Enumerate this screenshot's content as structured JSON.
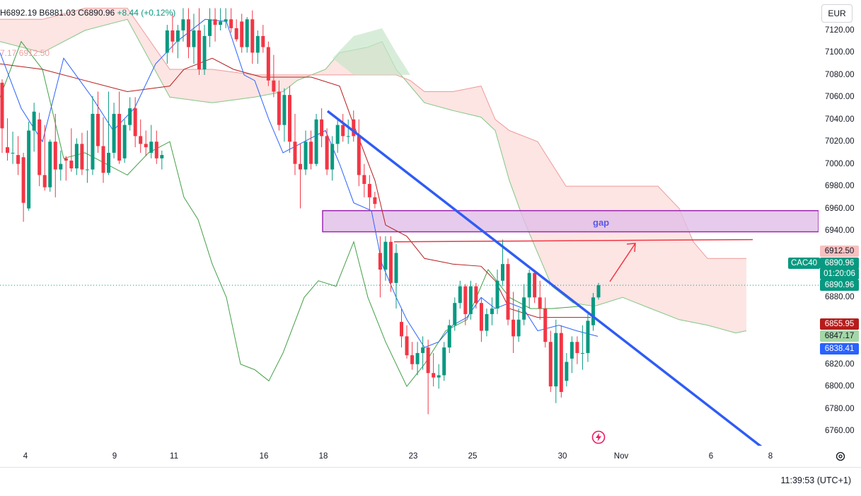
{
  "header": {
    "ohlc_text_h": "H6892.19",
    "ohlc_text_b": "B6881.03",
    "ohlc_text_c": "C6890.96",
    "change_text": "+8.44 (+0.12%)",
    "indicator_text": "7.17 6912.50"
  },
  "currency": "EUR",
  "clock": "11:39:53 (UTC+1)",
  "symbol": "CAC40",
  "annotation": {
    "gap_label": "gap"
  },
  "price_tags": {
    "last": "6890.96",
    "countdown": "01:20:06",
    "last_b": "6890.96",
    "t1": "6912.50",
    "t2": "6855.95",
    "t3": "6847.17",
    "t4": "6838.41"
  },
  "colors": {
    "up": "#089981",
    "down": "#f23645",
    "tenkan": "#2962ff",
    "kijun": "#b71c1c",
    "chikou": "#43a047",
    "cloud_bear": "#f8c5c0",
    "cloud_bull": "#c8e6c9",
    "trendline": "#2f5cf5",
    "gap_box": "#e1bee7"
  },
  "chart_data": {
    "type": "candlestick",
    "y_ticks": [
      "7120.00",
      "7100.00",
      "7080.00",
      "7060.00",
      "7040.00",
      "7020.00",
      "7000.00",
      "6980.00",
      "6960.00",
      "6940.00",
      "6880.00",
      "6820.00",
      "6800.00",
      "6780.00",
      "6760.00"
    ],
    "x_ticks": [
      "4",
      "9",
      "11",
      "16",
      "18",
      "23",
      "25",
      "30",
      "Nov",
      "6",
      "8"
    ],
    "ylim": [
      6750,
      7140
    ],
    "last_price": 6890.96,
    "candles": [
      [
        7073,
        7076,
        7010,
        7032
      ],
      [
        7015,
        7041,
        7003,
        7010
      ],
      [
        7010,
        7029,
        7000,
        7010
      ],
      [
        7008,
        7025,
        6990,
        7000
      ],
      [
        7006,
        7010,
        6948,
        6965
      ],
      [
        6960,
        7038,
        6958,
        7030
      ],
      [
        7030,
        7055,
        7011,
        7047
      ],
      [
        7040,
        7046,
        6980,
        6990
      ],
      [
        6990,
        7035,
        6976,
        6979
      ],
      [
        6979,
        7022,
        6975,
        7020
      ],
      [
        7020,
        7045,
        6970,
        6995
      ],
      [
        6995,
        7012,
        6985,
        7000
      ],
      [
        7005,
        7007,
        6985,
        7003
      ],
      [
        7003,
        7032,
        6993,
        6996
      ],
      [
        6996,
        7023,
        6990,
        7018
      ],
      [
        7018,
        7028,
        6990,
        6995
      ],
      [
        6995,
        7030,
        6983,
        6995
      ],
      [
        6995,
        7061,
        6990,
        7045
      ],
      [
        7045,
        7065,
        7010,
        7016
      ],
      [
        7016,
        7042,
        6983,
        6992
      ],
      [
        6992,
        7065,
        6990,
        7010
      ],
      [
        7010,
        7055,
        7005,
        7045
      ],
      [
        7045,
        7065,
        7000,
        7003
      ],
      [
        7005,
        7040,
        7001,
        7035
      ],
      [
        7035,
        7060,
        7030,
        7050
      ],
      [
        7050,
        7060,
        7015,
        7025
      ],
      [
        7025,
        7040,
        7010,
        7018
      ],
      [
        7018,
        7030,
        7007,
        7015
      ],
      [
        7010,
        7035,
        7005,
        7020
      ],
      [
        7020,
        7030,
        7000,
        7005
      ],
      [
        7005,
        7012,
        6995,
        7008
      ],
      [
        7100,
        7125,
        7090,
        7120
      ],
      [
        7120,
        7135,
        7100,
        7110
      ],
      [
        7110,
        7125,
        7095,
        7120
      ],
      [
        7120,
        7140,
        7110,
        7130
      ],
      [
        7130,
        7140,
        7095,
        7105
      ],
      [
        7105,
        7135,
        7090,
        7120
      ],
      [
        7120,
        7140,
        7080,
        7085
      ],
      [
        7085,
        7125,
        7080,
        7115
      ],
      [
        7115,
        7140,
        7105,
        7130
      ],
      [
        7130,
        7140,
        7110,
        7125
      ],
      [
        7125,
        7140,
        7120,
        7128
      ],
      [
        7128,
        7140,
        7122,
        7130
      ],
      [
        7130,
        7140,
        7118,
        7122
      ],
      [
        7122,
        7130,
        7110,
        7112
      ],
      [
        7128,
        7135,
        7100,
        7105
      ],
      [
        7105,
        7132,
        7100,
        7130
      ],
      [
        7130,
        7138,
        7090,
        7100
      ],
      [
        7100,
        7120,
        7090,
        7115
      ],
      [
        7115,
        7125,
        7100,
        7105
      ],
      [
        7105,
        7110,
        7070,
        7075
      ],
      [
        7075,
        7098,
        7060,
        7065
      ],
      [
        7065,
        7075,
        7030,
        7035
      ],
      [
        7035,
        7068,
        7020,
        7062
      ],
      [
        7062,
        7070,
        7010,
        7020
      ],
      [
        7020,
        7045,
        6990,
        7000
      ],
      [
        7000,
        7018,
        6960,
        6995
      ],
      [
        6995,
        7030,
        6990,
        7020
      ],
      [
        7020,
        7030,
        6995,
        7000
      ],
      [
        7000,
        7045,
        6998,
        7040
      ],
      [
        7040,
        7050,
        7015,
        7025
      ],
      [
        7025,
        7032,
        6990,
        6995
      ],
      [
        6995,
        7025,
        6985,
        7018
      ],
      [
        7018,
        7040,
        7010,
        7035
      ],
      [
        7035,
        7045,
        7020,
        7025
      ],
      [
        7025,
        7040,
        7018,
        7025
      ],
      [
        7040,
        7048,
        7020,
        7025
      ],
      [
        7025,
        7040,
        6980,
        6990
      ],
      [
        6990,
        7000,
        6970,
        6982
      ],
      [
        6982,
        6990,
        6958,
        6970
      ],
      [
        6970,
        6975,
        6960,
        6964
      ],
      [
        6920,
        6935,
        6880,
        6905
      ],
      [
        6905,
        6935,
        6895,
        6930
      ],
      [
        6930,
        6935,
        6885,
        6893
      ],
      [
        6893,
        6928,
        6870,
        6920
      ],
      [
        6858,
        6870,
        6835,
        6845
      ],
      [
        6845,
        6855,
        6825,
        6828
      ],
      [
        6828,
        6840,
        6815,
        6820
      ],
      [
        6820,
        6840,
        6810,
        6830
      ],
      [
        6830,
        6845,
        6815,
        6835
      ],
      [
        6835,
        6842,
        6775,
        6812
      ],
      [
        6812,
        6830,
        6800,
        6808
      ],
      [
        6808,
        6820,
        6798,
        6810
      ],
      [
        6810,
        6840,
        6805,
        6835
      ],
      [
        6835,
        6860,
        6830,
        6855
      ],
      [
        6855,
        6880,
        6850,
        6875
      ],
      [
        6875,
        6895,
        6870,
        6890
      ],
      [
        6890,
        6892,
        6855,
        6865
      ],
      [
        6865,
        6895,
        6860,
        6890
      ],
      [
        6890,
        6893,
        6870,
        6875
      ],
      [
        6875,
        6880,
        6840,
        6850
      ],
      [
        6850,
        6870,
        6845,
        6865
      ],
      [
        6865,
        6880,
        6855,
        6870
      ],
      [
        6870,
        6905,
        6865,
        6895
      ],
      [
        6895,
        6932,
        6890,
        6910
      ],
      [
        6910,
        6915,
        6855,
        6860
      ],
      [
        6860,
        6885,
        6830,
        6845
      ],
      [
        6845,
        6870,
        6840,
        6860
      ],
      [
        6860,
        6892,
        6855,
        6880
      ],
      [
        6880,
        6905,
        6870,
        6902
      ],
      [
        6902,
        6905,
        6875,
        6880
      ],
      [
        6880,
        6895,
        6860,
        6870
      ],
      [
        6870,
        6880,
        6835,
        6840
      ],
      [
        6840,
        6850,
        6795,
        6800
      ],
      [
        6800,
        6860,
        6785,
        6848
      ],
      [
        6848,
        6855,
        6790,
        6795
      ],
      [
        6805,
        6830,
        6800,
        6822
      ],
      [
        6825,
        6845,
        6812,
        6840
      ],
      [
        6840,
        6845,
        6820,
        6830
      ],
      [
        6830,
        6855,
        6815,
        6830
      ],
      [
        6830,
        6865,
        6822,
        6859
      ],
      [
        6855,
        6884,
        6850,
        6880
      ],
      [
        6880,
        6893,
        6878,
        6890.96
      ]
    ],
    "lines": {
      "tenkan": [
        [
          0,
          7100
        ],
        [
          30,
          7050
        ],
        [
          60,
          7020
        ],
        [
          90,
          7095
        ],
        [
          130,
          7060
        ],
        [
          160,
          7030
        ],
        [
          190,
          7050
        ],
        [
          220,
          7090
        ],
        [
          250,
          7110
        ],
        [
          290,
          7130
        ],
        [
          320,
          7128
        ],
        [
          345,
          7080
        ],
        [
          360,
          7075
        ],
        [
          380,
          7040
        ],
        [
          400,
          7010
        ],
        [
          430,
          7020
        ],
        [
          460,
          7030
        ],
        [
          480,
          7000
        ],
        [
          500,
          6965
        ],
        [
          525,
          6958
        ],
        [
          540,
          6910
        ],
        [
          560,
          6880
        ],
        [
          575,
          6860
        ],
        [
          600,
          6835
        ],
        [
          620,
          6840
        ],
        [
          640,
          6855
        ],
        [
          660,
          6862
        ],
        [
          680,
          6880
        ],
        [
          700,
          6870
        ],
        [
          720,
          6875
        ],
        [
          740,
          6870
        ],
        [
          760,
          6850
        ],
        [
          790,
          6855
        ],
        [
          815,
          6850
        ],
        [
          845,
          6845
        ]
      ],
      "kijun": [
        [
          0,
          7090
        ],
        [
          60,
          7085
        ],
        [
          120,
          7075
        ],
        [
          180,
          7065
        ],
        [
          240,
          7070
        ],
        [
          260,
          7085
        ],
        [
          300,
          7095
        ],
        [
          330,
          7085
        ],
        [
          370,
          7078
        ],
        [
          400,
          7078
        ],
        [
          440,
          7078
        ],
        [
          480,
          7070
        ],
        [
          500,
          7035
        ],
        [
          530,
          6985
        ],
        [
          545,
          6945
        ],
        [
          575,
          6935
        ],
        [
          600,
          6915
        ],
        [
          640,
          6910
        ],
        [
          680,
          6908
        ],
        [
          700,
          6895
        ],
        [
          720,
          6870
        ],
        [
          760,
          6862
        ],
        [
          800,
          6862
        ],
        [
          835,
          6862
        ]
      ],
      "chikou": [
        [
          0,
          7060
        ],
        [
          30,
          7110
        ],
        [
          60,
          7085
        ],
        [
          90,
          7005
        ],
        [
          120,
          7010
        ],
        [
          150,
          7000
        ],
        [
          180,
          6990
        ],
        [
          210,
          7010
        ],
        [
          240,
          7020
        ],
        [
          260,
          6970
        ],
        [
          280,
          6950
        ],
        [
          300,
          6910
        ],
        [
          320,
          6880
        ],
        [
          340,
          6820
        ],
        [
          360,
          6815
        ],
        [
          380,
          6805
        ],
        [
          400,
          6830
        ],
        [
          430,
          6880
        ],
        [
          450,
          6895
        ],
        [
          475,
          6890
        ],
        [
          500,
          6930
        ],
        [
          520,
          6880
        ],
        [
          545,
          6840
        ],
        [
          575,
          6800
        ],
        [
          600,
          6820
        ],
        [
          630,
          6850
        ],
        [
          660,
          6860
        ],
        [
          690,
          6905
        ],
        [
          720,
          6880
        ],
        [
          750,
          6870
        ],
        [
          780,
          6870
        ],
        [
          820,
          6872
        ]
      ]
    },
    "cloud": {
      "senkou_a": [
        [
          0,
          7110
        ],
        [
          60,
          7100
        ],
        [
          120,
          7120
        ],
        [
          180,
          7130
        ],
        [
          240,
          7060
        ],
        [
          300,
          7055
        ],
        [
          360,
          7060
        ],
        [
          400,
          7065
        ],
        [
          420,
          7075
        ],
        [
          460,
          7085
        ],
        [
          480,
          7100
        ],
        [
          520,
          7105
        ],
        [
          540,
          7110
        ],
        [
          560,
          7085
        ],
        [
          580,
          7070
        ],
        [
          600,
          7055
        ],
        [
          640,
          7048
        ],
        [
          680,
          7042
        ],
        [
          700,
          7030
        ],
        [
          720,
          6985
        ],
        [
          740,
          6950
        ],
        [
          760,
          6920
        ],
        [
          780,
          6890
        ],
        [
          810,
          6875
        ],
        [
          840,
          6872
        ],
        [
          880,
          6880
        ],
        [
          920,
          6870
        ],
        [
          960,
          6860
        ],
        [
          1000,
          6855
        ],
        [
          1040,
          6848
        ],
        [
          1055,
          6850
        ]
      ],
      "senkou_b": [
        [
          0,
          7130
        ],
        [
          60,
          7130
        ],
        [
          120,
          7140
        ],
        [
          180,
          7140
        ],
        [
          240,
          7085
        ],
        [
          300,
          7085
        ],
        [
          360,
          7080
        ],
        [
          400,
          7080
        ],
        [
          440,
          7080
        ],
        [
          480,
          7080
        ],
        [
          520,
          7080
        ],
        [
          560,
          7080
        ],
        [
          580,
          7075
        ],
        [
          600,
          7065
        ],
        [
          640,
          7065
        ],
        [
          680,
          7070
        ],
        [
          700,
          7040
        ],
        [
          720,
          7030
        ],
        [
          760,
          7020
        ],
        [
          800,
          6980
        ],
        [
          840,
          6980
        ],
        [
          880,
          6980
        ],
        [
          930,
          6980
        ],
        [
          960,
          6960
        ],
        [
          980,
          6930
        ],
        [
          1000,
          6915
        ],
        [
          1055,
          6915
        ]
      ]
    },
    "annotations": {
      "trendline": [
        [
          463,
          157
        ],
        [
          1077,
          632
        ]
      ],
      "gap_zone": [
        6958,
        6939
      ],
      "resistance_line": [
        6930,
        6932
      ],
      "arrow": [
        [
          862,
          398
        ],
        [
          898,
          344
        ]
      ]
    }
  }
}
